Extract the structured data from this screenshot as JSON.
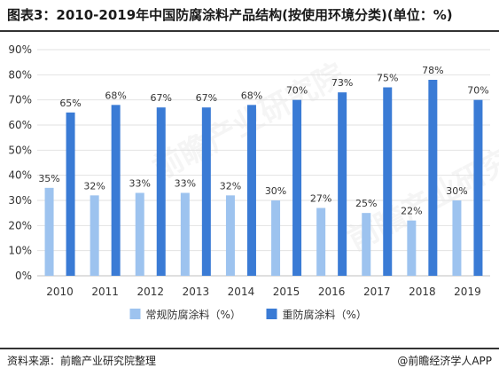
{
  "title": "图表3：2010-2019年中国防腐涂料产品结构(按使用环境分类)(单位：%)",
  "footer_left": "资料来源：前瞻产业研究院整理",
  "footer_right": "@前瞻经济学人APP",
  "watermark": "前瞻产业研究院",
  "colors": {
    "series1": "#9dc3ef",
    "series2": "#3a7bd5",
    "grid": "#e2e2e2",
    "axis": "#bfbfbf",
    "text": "#333333"
  },
  "chart_data": {
    "type": "bar",
    "categories": [
      "2010",
      "2011",
      "2012",
      "2013",
      "2014",
      "2015",
      "2016",
      "2017",
      "2018",
      "2019"
    ],
    "series": [
      {
        "name": "常规防腐涂料（%）",
        "values": [
          35,
          32,
          33,
          33,
          32,
          30,
          27,
          25,
          22,
          30
        ],
        "labels": [
          "35%",
          "32%",
          "33%",
          "33%",
          "32%",
          "30%",
          "27%",
          "25%",
          "22%",
          "30%"
        ]
      },
      {
        "name": "重防腐涂料（%）",
        "values": [
          65,
          68,
          67,
          67,
          68,
          70,
          73,
          75,
          78,
          70
        ],
        "labels": [
          "65%",
          "68%",
          "67%",
          "67%",
          "68%",
          "70%",
          "73%",
          "75%",
          "78%",
          "70%"
        ]
      }
    ],
    "yticks": [
      "0%",
      "10%",
      "20%",
      "30%",
      "40%",
      "50%",
      "60%",
      "70%",
      "80%",
      "90%"
    ],
    "ylim": [
      0,
      90
    ],
    "grid": true,
    "legend": "bottom-center"
  }
}
